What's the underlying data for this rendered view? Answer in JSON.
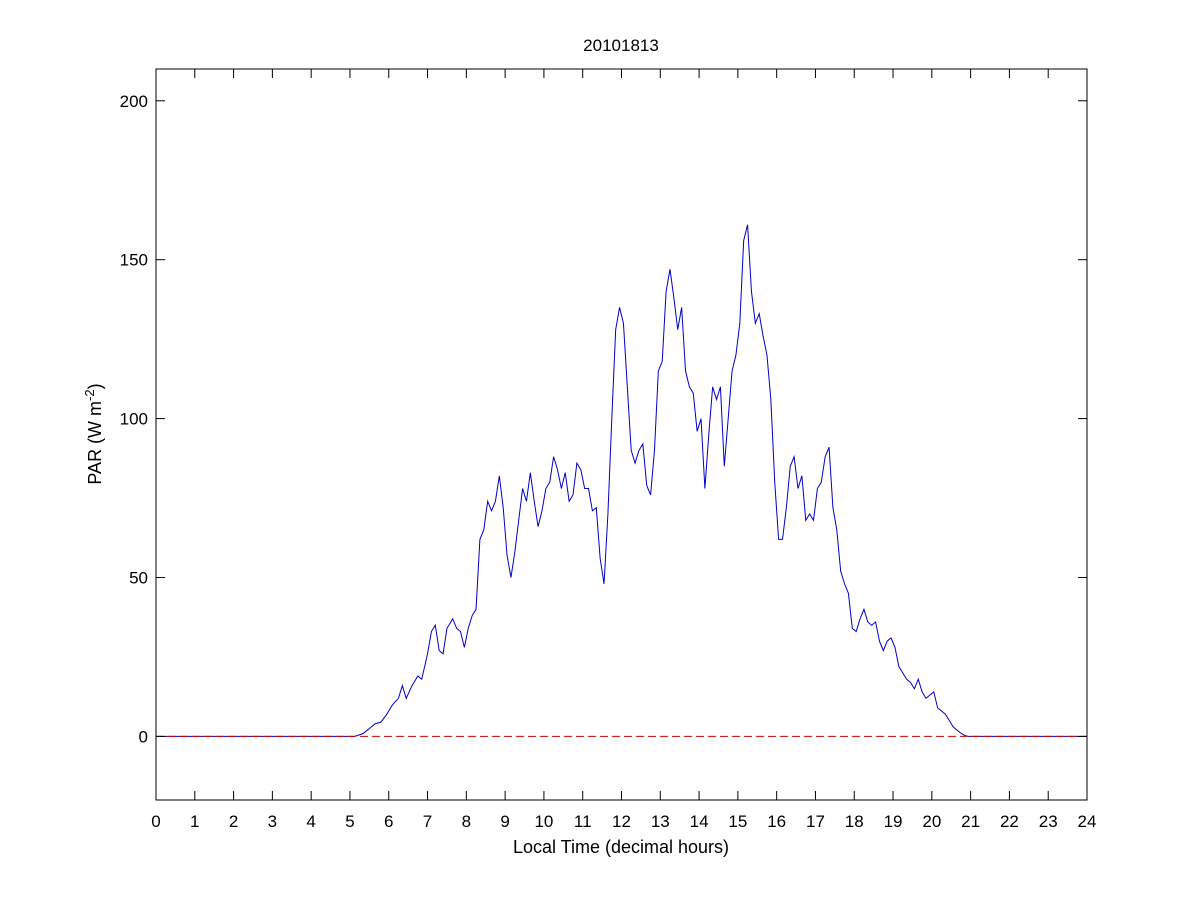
{
  "chart_data": {
    "type": "line",
    "title": "20101813",
    "xlabel": "Local Time (decimal hours)",
    "ylabel": {
      "prefix": "PAR (W m",
      "superscript": "-2",
      "suffix": ")"
    },
    "xlim": [
      0,
      24
    ],
    "ylim": [
      -20,
      210
    ],
    "xticks": [
      0,
      1,
      2,
      3,
      4,
      5,
      6,
      7,
      8,
      9,
      10,
      11,
      12,
      13,
      14,
      15,
      16,
      17,
      18,
      19,
      20,
      21,
      22,
      23,
      24
    ],
    "yticks": [
      0,
      50,
      100,
      150,
      200
    ],
    "grid": false,
    "legend": null,
    "series": [
      {
        "color": "#0000cc",
        "style": "solid",
        "points": [
          [
            0,
            0
          ],
          [
            5.1,
            0
          ],
          [
            5.2,
            0.3
          ],
          [
            5.35,
            1
          ],
          [
            5.5,
            2.5
          ],
          [
            5.65,
            4
          ],
          [
            5.8,
            4.5
          ],
          [
            5.95,
            7
          ],
          [
            6.1,
            10
          ],
          [
            6.25,
            12
          ],
          [
            6.35,
            16
          ],
          [
            6.45,
            12
          ],
          [
            6.6,
            16
          ],
          [
            6.75,
            19
          ],
          [
            6.85,
            18
          ],
          [
            7.0,
            26
          ],
          [
            7.1,
            33
          ],
          [
            7.2,
            35
          ],
          [
            7.3,
            27
          ],
          [
            7.4,
            26
          ],
          [
            7.5,
            34
          ],
          [
            7.65,
            37
          ],
          [
            7.75,
            34
          ],
          [
            7.85,
            33
          ],
          [
            7.95,
            28
          ],
          [
            8.05,
            34
          ],
          [
            8.15,
            38
          ],
          [
            8.25,
            40
          ],
          [
            8.35,
            62
          ],
          [
            8.45,
            65
          ],
          [
            8.55,
            74
          ],
          [
            8.65,
            71
          ],
          [
            8.75,
            74
          ],
          [
            8.85,
            82
          ],
          [
            8.95,
            72
          ],
          [
            9.05,
            57
          ],
          [
            9.15,
            50
          ],
          [
            9.25,
            58
          ],
          [
            9.35,
            68
          ],
          [
            9.45,
            78
          ],
          [
            9.55,
            74
          ],
          [
            9.65,
            83
          ],
          [
            9.75,
            74
          ],
          [
            9.85,
            66
          ],
          [
            9.95,
            71
          ],
          [
            10.05,
            78
          ],
          [
            10.15,
            80
          ],
          [
            10.25,
            88
          ],
          [
            10.35,
            84
          ],
          [
            10.45,
            78
          ],
          [
            10.55,
            83
          ],
          [
            10.65,
            74
          ],
          [
            10.75,
            76
          ],
          [
            10.85,
            86
          ],
          [
            10.95,
            84
          ],
          [
            11.05,
            78
          ],
          [
            11.15,
            78
          ],
          [
            11.25,
            71
          ],
          [
            11.35,
            72
          ],
          [
            11.45,
            56
          ],
          [
            11.55,
            48
          ],
          [
            11.65,
            70
          ],
          [
            11.75,
            100
          ],
          [
            11.85,
            128
          ],
          [
            11.95,
            135
          ],
          [
            12.05,
            130
          ],
          [
            12.15,
            110
          ],
          [
            12.25,
            90
          ],
          [
            12.35,
            86
          ],
          [
            12.45,
            90
          ],
          [
            12.55,
            92
          ],
          [
            12.65,
            79
          ],
          [
            12.75,
            76
          ],
          [
            12.85,
            90
          ],
          [
            12.95,
            115
          ],
          [
            13.05,
            118
          ],
          [
            13.15,
            140
          ],
          [
            13.25,
            147
          ],
          [
            13.35,
            138
          ],
          [
            13.45,
            128
          ],
          [
            13.55,
            135
          ],
          [
            13.65,
            115
          ],
          [
            13.75,
            110
          ],
          [
            13.85,
            108
          ],
          [
            13.95,
            96
          ],
          [
            14.05,
            100
          ],
          [
            14.15,
            78
          ],
          [
            14.25,
            95
          ],
          [
            14.35,
            110
          ],
          [
            14.45,
            106
          ],
          [
            14.55,
            110
          ],
          [
            14.65,
            85
          ],
          [
            14.75,
            100
          ],
          [
            14.85,
            115
          ],
          [
            14.95,
            120
          ],
          [
            15.05,
            130
          ],
          [
            15.15,
            156
          ],
          [
            15.25,
            161
          ],
          [
            15.35,
            140
          ],
          [
            15.45,
            130
          ],
          [
            15.55,
            133
          ],
          [
            15.65,
            126
          ],
          [
            15.75,
            120
          ],
          [
            15.85,
            106
          ],
          [
            15.95,
            80
          ],
          [
            16.05,
            62
          ],
          [
            16.15,
            62
          ],
          [
            16.25,
            72
          ],
          [
            16.35,
            85
          ],
          [
            16.45,
            88
          ],
          [
            16.55,
            78
          ],
          [
            16.65,
            82
          ],
          [
            16.75,
            68
          ],
          [
            16.85,
            70
          ],
          [
            16.95,
            68
          ],
          [
            17.05,
            78
          ],
          [
            17.15,
            80
          ],
          [
            17.25,
            88
          ],
          [
            17.35,
            91
          ],
          [
            17.45,
            72
          ],
          [
            17.55,
            65
          ],
          [
            17.65,
            52
          ],
          [
            17.75,
            48
          ],
          [
            17.85,
            45
          ],
          [
            17.95,
            34
          ],
          [
            18.05,
            33
          ],
          [
            18.15,
            37
          ],
          [
            18.25,
            40
          ],
          [
            18.35,
            36
          ],
          [
            18.45,
            35
          ],
          [
            18.55,
            36
          ],
          [
            18.65,
            30
          ],
          [
            18.75,
            27
          ],
          [
            18.85,
            30
          ],
          [
            18.95,
            31
          ],
          [
            19.05,
            28
          ],
          [
            19.15,
            22
          ],
          [
            19.25,
            20
          ],
          [
            19.35,
            18
          ],
          [
            19.45,
            17
          ],
          [
            19.55,
            15
          ],
          [
            19.65,
            18
          ],
          [
            19.75,
            14
          ],
          [
            19.85,
            12
          ],
          [
            19.95,
            13
          ],
          [
            20.05,
            14
          ],
          [
            20.15,
            9
          ],
          [
            20.25,
            8
          ],
          [
            20.35,
            7
          ],
          [
            20.45,
            5
          ],
          [
            20.55,
            3
          ],
          [
            20.65,
            2
          ],
          [
            20.75,
            1
          ],
          [
            20.85,
            0.3
          ],
          [
            20.95,
            0
          ],
          [
            24,
            0
          ]
        ]
      },
      {
        "color": "#cc0000",
        "style": "dashed",
        "points": [
          [
            0,
            0
          ],
          [
            24,
            0
          ]
        ]
      }
    ]
  }
}
